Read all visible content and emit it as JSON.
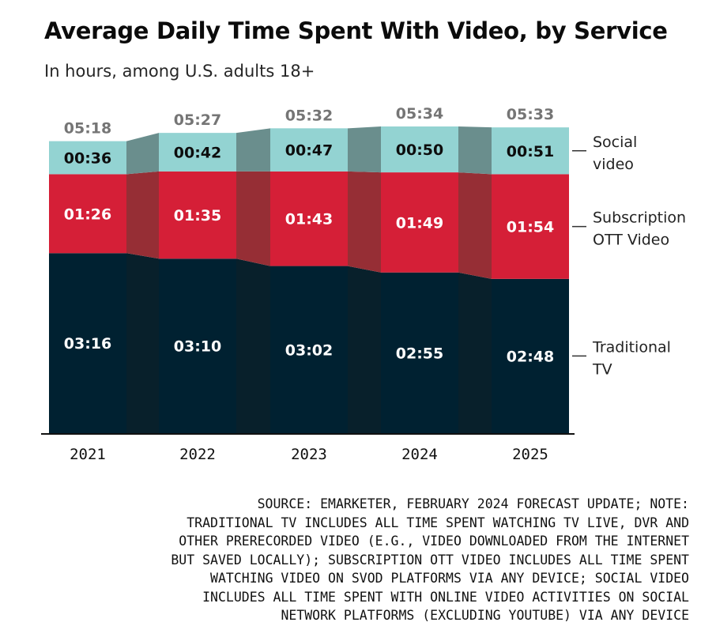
{
  "title": "Average Daily Time Spent With Video, by Service",
  "subtitle": "In hours, among U.S. adults 18+",
  "source_note": "SOURCE: EMARKETER, FEBRUARY 2024 FORECAST UPDATE; NOTE:\nTRADITIONAL TV INCLUDES ALL TIME SPENT WATCHING TV LIVE, DVR AND\nOTHER PRERECORDED VIDEO (E.G., VIDEO DOWNLOADED FROM THE INTERNET\nBUT SAVED LOCALLY); SUBSCRIPTION OTT VIDEO INCLUDES ALL TIME SPENT\nWATCHING VIDEO ON SVOD PLATFORMS VIA ANY DEVICE; SOCIAL VIDEO\nINCLUDES ALL TIME SPENT WITH ONLINE VIDEO ACTIVITIES ON SOCIAL\nNETWORK PLATFORMS (EXCLUDING YOUTUBE) VIA ANY DEVICE",
  "chart_data": {
    "type": "bar",
    "stacked": true,
    "value_unit": "hours:minutes",
    "categories": [
      "2021",
      "2022",
      "2023",
      "2024",
      "2025"
    ],
    "totals": [
      "05:18",
      "05:27",
      "05:32",
      "05:34",
      "05:33"
    ],
    "totals_minutes": [
      318,
      327,
      332,
      334,
      333
    ],
    "series": [
      {
        "name": "Traditional TV",
        "color": "#002131",
        "connector_color": "#08202b",
        "label_color": "#ffffff",
        "labels": [
          "03:16",
          "03:10",
          "03:02",
          "02:55",
          "02:48"
        ],
        "values_minutes": [
          196,
          190,
          182,
          175,
          168
        ]
      },
      {
        "name": "Subscription OTT Video",
        "color": "#d51f37",
        "connector_color": "#962e35",
        "label_color": "#ffffff",
        "labels": [
          "01:26",
          "01:35",
          "01:43",
          "01:49",
          "01:54"
        ],
        "values_minutes": [
          86,
          95,
          103,
          109,
          114
        ]
      },
      {
        "name": "Social video",
        "color": "#93d3d2",
        "connector_color": "#6a8e8d",
        "label_color": "#0d0d0d",
        "labels": [
          "00:36",
          "00:42",
          "00:47",
          "00:50",
          "00:51"
        ],
        "values_minutes": [
          36,
          42,
          47,
          50,
          51
        ]
      }
    ],
    "legend": {
      "placement": "right",
      "labels": [
        [
          "Social",
          "video"
        ],
        [
          "Subscription",
          "OTT Video"
        ],
        [
          "Traditional",
          "TV"
        ]
      ]
    },
    "total_label_color": "#757575",
    "grid": false,
    "ylim": [
      0,
      334
    ]
  }
}
